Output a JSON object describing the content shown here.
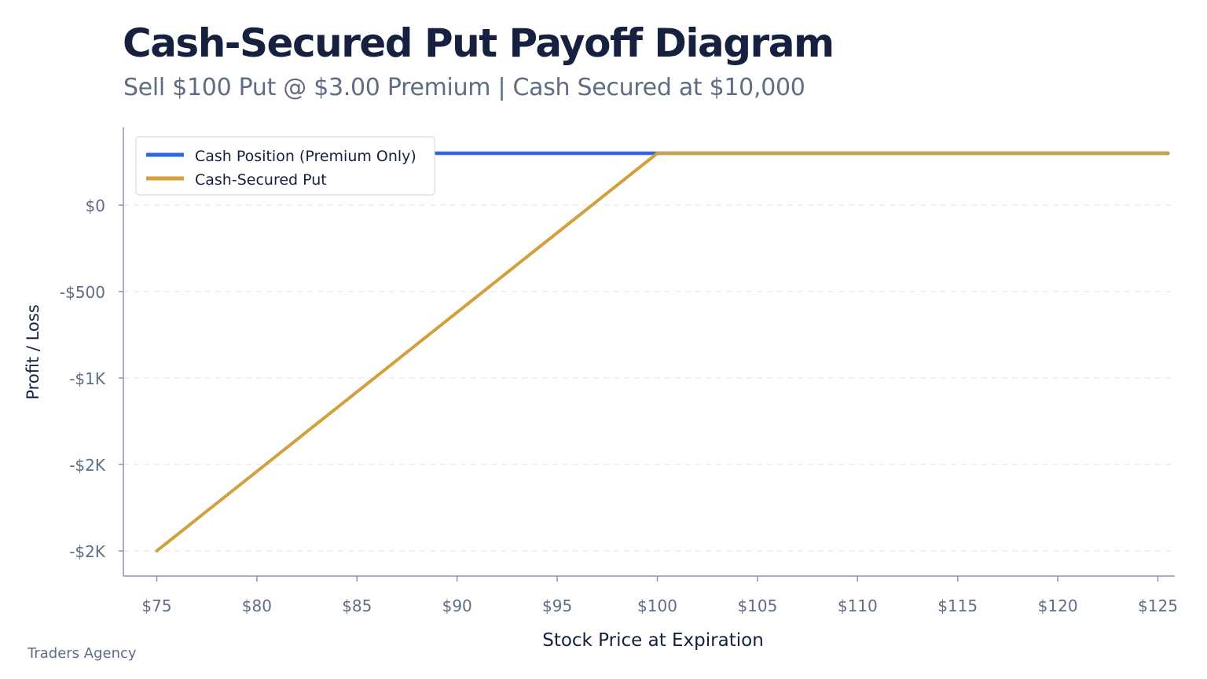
{
  "chart_data": {
    "type": "line",
    "title": "Cash-Secured Put Payoff Diagram",
    "subtitle": "Sell $100 Put @ $3.00 Premium | Cash Secured at $10,000",
    "xlabel": "Stock Price at Expiration",
    "ylabel": "Profit / Loss",
    "xlim": [
      73.3,
      125.5
    ],
    "ylim": [
      -2160,
      470
    ],
    "x_ticks": [
      75,
      80,
      85,
      90,
      95,
      100,
      105,
      110,
      115,
      120,
      125
    ],
    "x_tick_labels": [
      "$75",
      "$80",
      "$85",
      "$90",
      "$95",
      "$100",
      "$105",
      "$110",
      "$115",
      "$120",
      "$125"
    ],
    "y_ticks": [
      0,
      -500,
      -1000,
      -1500,
      -2000
    ],
    "y_tick_labels": [
      "$0",
      "-$500",
      "-$1K",
      "-$2K",
      "-$2K"
    ],
    "grid": "horizontal dashed",
    "legend_position": "top-left",
    "series": [
      {
        "name": "Cash Position (Premium Only)",
        "color": "#2f66e6",
        "x": [
          75,
          125.5
        ],
        "values": [
          300,
          300
        ]
      },
      {
        "name": "Cash-Secured Put",
        "color": "#d2a03c",
        "x": [
          75,
          100,
          125.5
        ],
        "values": [
          -2000,
          300,
          300
        ]
      }
    ]
  },
  "footer": {
    "brand": "Traders Agency"
  }
}
